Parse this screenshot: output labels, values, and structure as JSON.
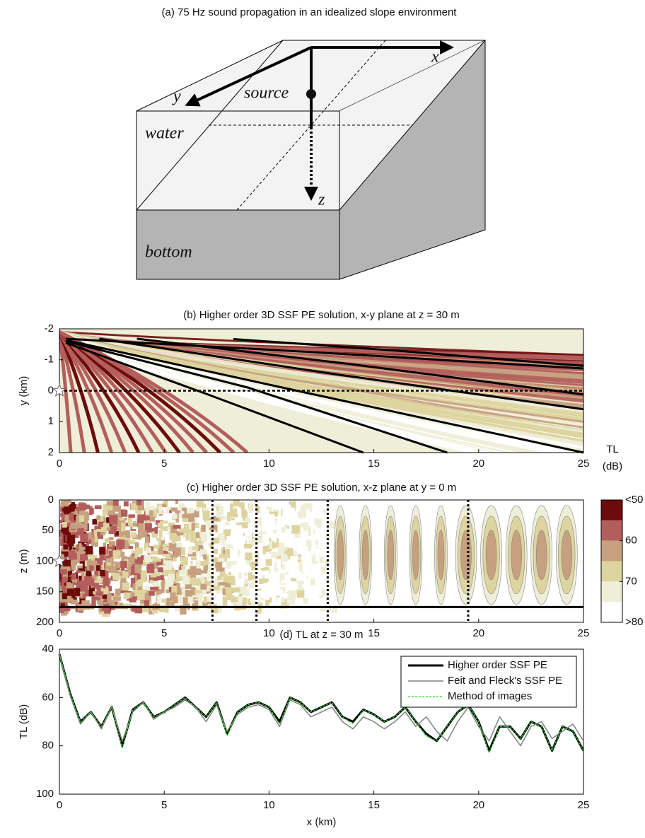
{
  "diagram": {
    "title": "(a) 75 Hz sound propagation in an idealized slope environment",
    "labels": {
      "x": "x",
      "y": "y",
      "z": "z",
      "source": "source",
      "water": "water",
      "bottom": "bottom"
    }
  },
  "chart_data": [
    {
      "type": "field",
      "title": "(b) Higher order 3D SSF PE solution,  x-y plane at z = 30 m",
      "ylabel": "y (km)",
      "xlim": [
        0,
        25
      ],
      "xticks": [
        0,
        5,
        10,
        15,
        20,
        25
      ],
      "ylim": [
        -2,
        2
      ],
      "yticks": [
        -2,
        -1,
        0,
        1,
        2
      ],
      "y_reversed": true,
      "lines": [
        {
          "x": [
            0.3,
            12,
            25
          ],
          "values": [
            -1.68,
            -1.25,
            -0.72
          ]
        },
        {
          "x": [
            8.3,
            16,
            25
          ],
          "values": [
            -1.67,
            -1.3,
            -0.8
          ]
        },
        {
          "x": [
            3.7,
            14,
            25
          ],
          "values": [
            -1.68,
            -0.85,
            0.12
          ]
        },
        {
          "x": [
            1.9,
            13,
            25
          ],
          "values": [
            -1.68,
            -0.55,
            0.6
          ]
        },
        {
          "x": [
            0.4,
            12,
            25
          ],
          "values": [
            -1.62,
            0.1,
            2.0
          ]
        },
        {
          "x": [
            0.3,
            9,
            18.5
          ],
          "values": [
            -1.6,
            -0.1,
            2.0
          ]
        },
        {
          "x": [
            0.3,
            7,
            14.5
          ],
          "values": [
            -1.55,
            0.1,
            2.0
          ]
        }
      ],
      "reference_line": {
        "x": [
          0,
          25
        ],
        "values": [
          0,
          0
        ]
      },
      "source": {
        "x": 0,
        "y": 0
      }
    },
    {
      "type": "field",
      "title": "(c) Higher order 3D SSF PE solution,  x-z plane at y = 0 m",
      "ylabel": "z (m)",
      "xlim": [
        0,
        25
      ],
      "xticks": [
        0,
        5,
        10,
        15,
        20,
        25
      ],
      "ylim": [
        0,
        200
      ],
      "yticks": [
        0,
        50,
        100,
        150,
        200
      ],
      "y_reversed": true,
      "dotted_x": [
        7.3,
        9.4,
        12.8,
        19.5
      ],
      "bottom_line": 175,
      "source": {
        "x": 0,
        "y": 100
      },
      "colorbar": {
        "title": [
          "TL",
          "(dB)"
        ],
        "lim": [
          50,
          80
        ],
        "ticks": [
          {
            "value": 50,
            "label": "<50"
          },
          60,
          70,
          {
            "value": 80,
            "label": ">80"
          }
        ],
        "colors": [
          "#6d0b0b",
          "#b35e5c",
          "#c7a07f",
          "#ddd49f",
          "#efeed9",
          "#ffffff"
        ]
      }
    },
    {
      "type": "line",
      "title": "(d) TL at z = 30 m",
      "xlabel": "x (km)",
      "ylabel": "TL (dB)",
      "xlim": [
        0,
        25
      ],
      "xticks": [
        0,
        5,
        10,
        15,
        20,
        25
      ],
      "ylim": [
        40,
        100
      ],
      "yticks": [
        40,
        60,
        80,
        100
      ],
      "y_reversed": true,
      "legend": "upper right",
      "x": [
        0,
        0.5,
        1,
        1.5,
        2,
        2.5,
        3,
        3.5,
        4,
        4.5,
        5,
        5.5,
        6,
        6.5,
        7,
        7.5,
        8,
        8.5,
        9,
        9.5,
        10,
        10.5,
        11,
        11.5,
        12,
        12.5,
        13,
        13.5,
        14,
        14.5,
        15,
        15.5,
        16,
        16.5,
        17,
        17.5,
        18,
        18.5,
        19,
        19.5,
        20,
        20.5,
        21,
        21.5,
        22,
        22.5,
        23,
        23.5,
        24,
        24.5,
        25
      ],
      "series": [
        {
          "name": "Higher order SSF PE",
          "color": "#000000",
          "width": 3,
          "values": [
            42,
            58,
            70,
            66,
            72,
            64,
            80,
            65,
            62,
            68,
            66,
            63,
            60,
            64,
            68,
            62,
            75,
            66,
            63,
            62,
            64,
            70,
            60,
            62,
            66,
            64,
            62,
            68,
            70,
            65,
            67,
            70,
            68,
            64,
            70,
            75,
            78,
            72,
            66,
            63,
            70,
            82,
            72,
            72,
            77,
            70,
            72,
            82,
            72,
            74,
            82
          ]
        },
        {
          "name": "Feit and Fleck's SSF PE",
          "color": "#808080",
          "width": 1.5,
          "values": [
            42,
            59,
            71,
            66,
            73,
            64,
            78,
            66,
            62,
            69,
            66,
            64,
            61,
            64,
            70,
            63,
            74,
            67,
            64,
            63,
            65,
            72,
            61,
            63,
            68,
            66,
            64,
            70,
            73,
            68,
            70,
            73,
            70,
            66,
            72,
            68,
            74,
            78,
            70,
            64,
            72,
            78,
            68,
            74,
            80,
            72,
            70,
            77,
            74,
            71,
            78
          ]
        },
        {
          "name": "Method of images",
          "color": "#22dd22",
          "width": 1.2,
          "dash": true,
          "values": [
            42,
            58,
            70,
            66,
            72,
            64,
            81,
            65,
            62,
            68,
            66,
            63,
            60,
            64,
            68,
            62,
            76,
            66,
            63,
            62,
            64,
            71,
            60,
            62,
            66,
            64,
            62,
            68,
            71,
            65,
            67,
            70,
            68,
            64,
            70,
            76,
            78,
            72,
            66,
            63,
            70,
            83,
            72,
            72,
            77,
            70,
            72,
            82,
            72,
            74,
            82
          ]
        }
      ]
    }
  ]
}
